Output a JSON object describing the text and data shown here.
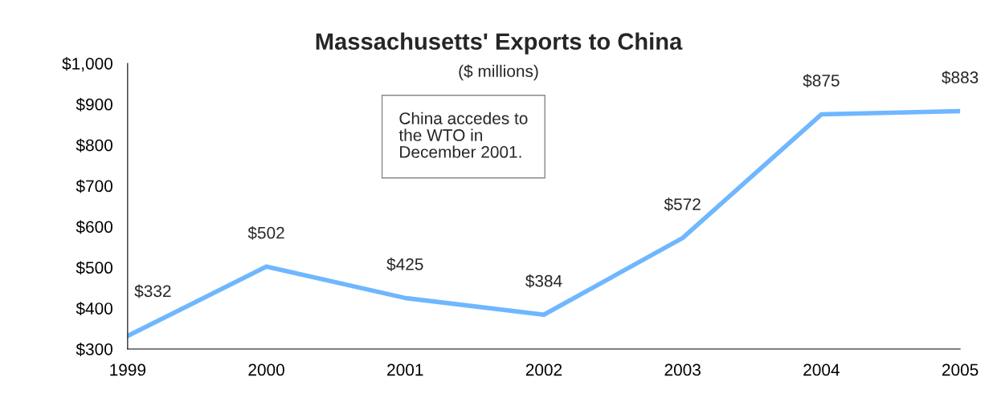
{
  "chart_data": {
    "type": "line",
    "title": "Massachusetts' Exports to China",
    "subtitle": "($ millions)",
    "x": [
      1999,
      2000,
      2001,
      2002,
      2003,
      2004,
      2005
    ],
    "series": [
      {
        "color": "#6fb7ff",
        "values": [
          332,
          502,
          425,
          384,
          572,
          875,
          883
        ]
      }
    ],
    "value_labels": [
      "$332",
      "$502",
      "$425",
      "$384",
      "$572",
      "$875",
      "$883"
    ],
    "xlim": [
      1999,
      2005
    ],
    "xticks": [
      1999,
      2000,
      2001,
      2002,
      2003,
      2004,
      2005
    ],
    "ylim": [
      300,
      1000
    ],
    "yticks": [
      {
        "value": 300,
        "label": "$300"
      },
      {
        "value": 400,
        "label": "$400"
      },
      {
        "value": 500,
        "label": "$500"
      },
      {
        "value": 600,
        "label": "$600"
      },
      {
        "value": 700,
        "label": "$700"
      },
      {
        "value": 800,
        "label": "$800"
      },
      {
        "value": 900,
        "label": "$900"
      },
      {
        "value": 1000,
        "label": "$1,000"
      }
    ],
    "annotations": [
      "China accedes to\nthe WTO in\nDecember 2001."
    ],
    "grid": false,
    "legend": false,
    "marker": "none",
    "line_style": "solid"
  }
}
